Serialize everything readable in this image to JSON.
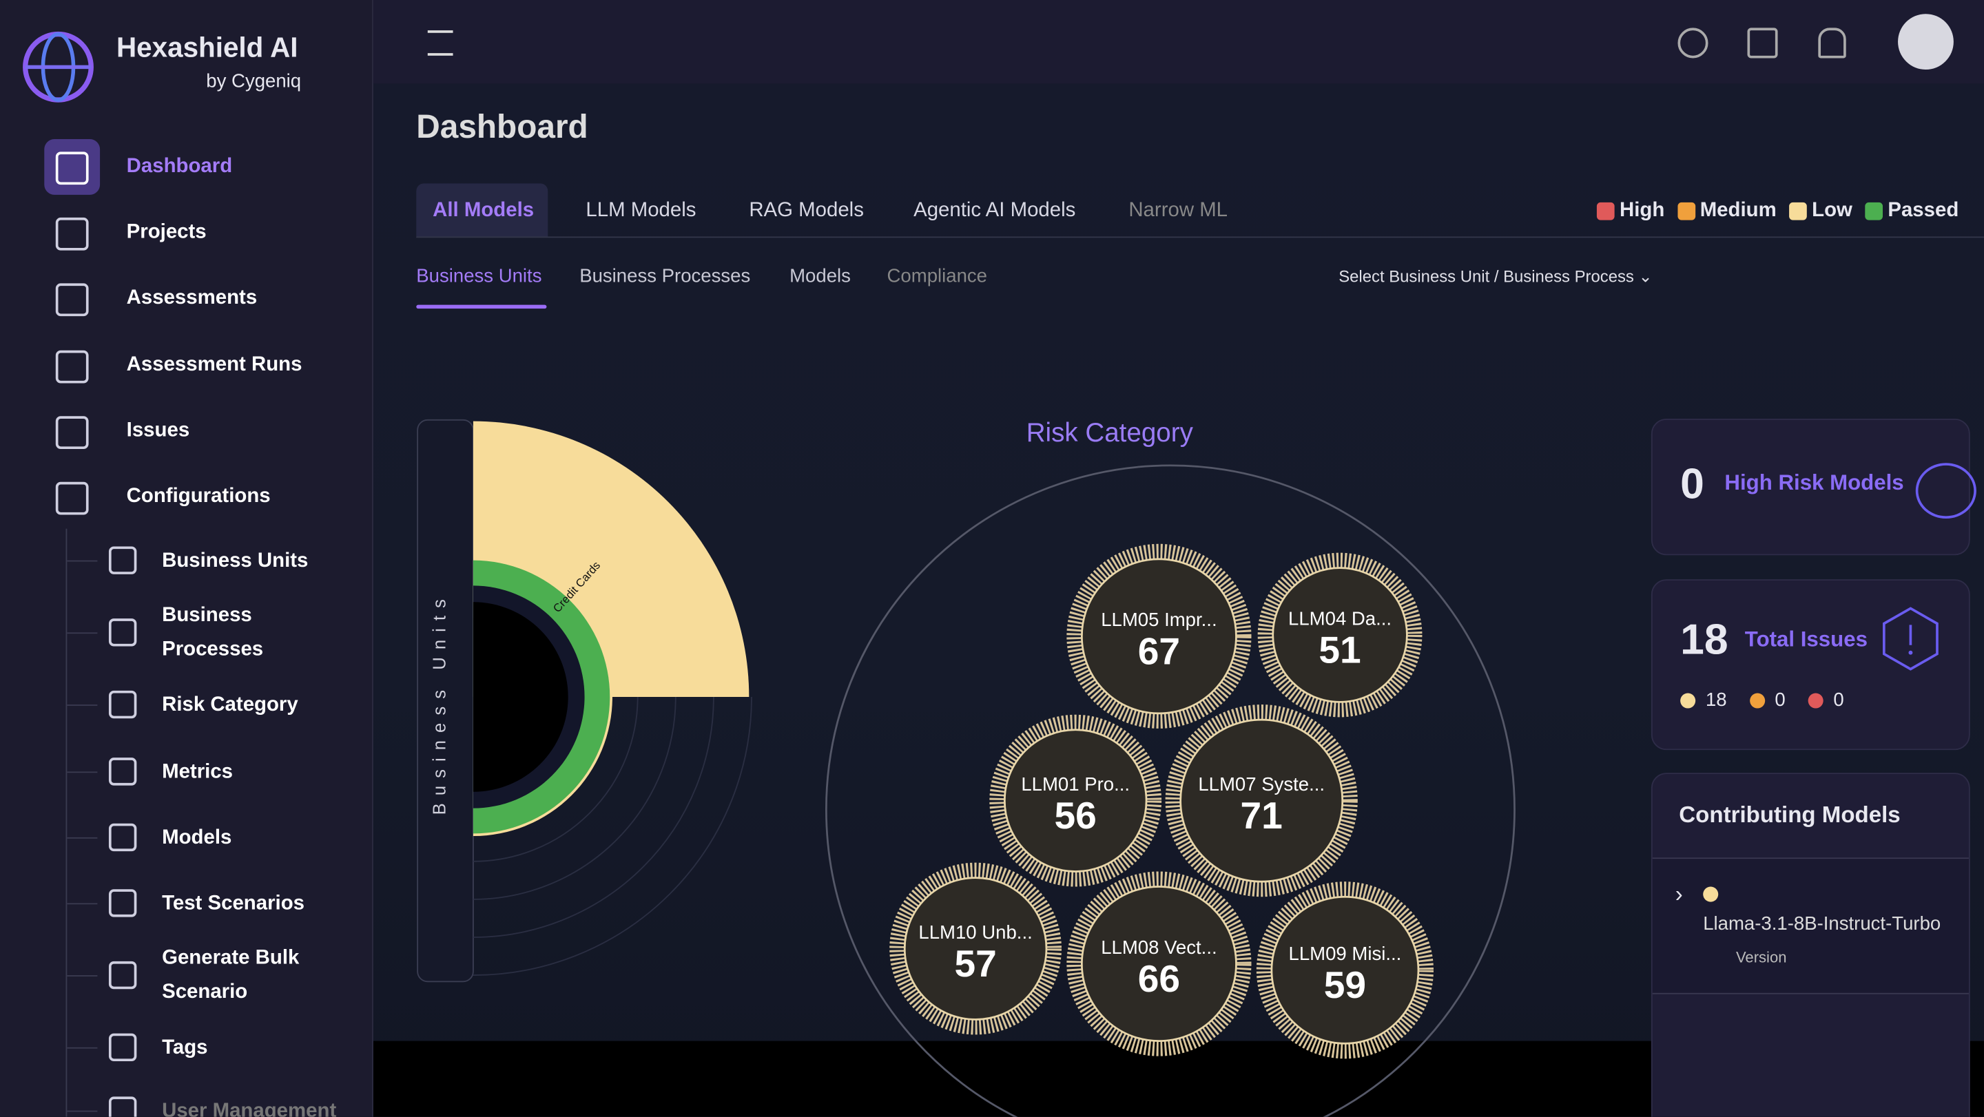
{
  "brand": {
    "name": "Hexashield AI",
    "by": "by Cygeniq"
  },
  "sidebar": {
    "items": [
      "Dashboard",
      "Projects",
      "Assessments",
      "Assessment Runs",
      "Issues",
      "Configurations"
    ],
    "sub_items": [
      "Business Units",
      "Business Processes",
      "Risk Category",
      "Metrics",
      "Models",
      "Test Scenarios",
      "Generate Bulk Scenario",
      "Tags",
      "User Management"
    ]
  },
  "page_title": "Dashboard",
  "model_tabs": [
    "All Models",
    "LLM Models",
    "RAG Models",
    "Agentic AI Models",
    "Narrow ML"
  ],
  "legend": [
    {
      "label": "High",
      "color": "#e05a5a"
    },
    {
      "label": "Medium",
      "color": "#f0a03c"
    },
    {
      "label": "Low",
      "color": "#f7dc9a"
    },
    {
      "label": "Passed",
      "color": "#4caf50"
    }
  ],
  "view_tabs": [
    "Business Units",
    "Business Processes",
    "Models",
    "Compliance"
  ],
  "selector": "Select Business Unit / Business Process",
  "sunburst": {
    "axis_label": "Business Units",
    "segment_label": "Credit Cards"
  },
  "risk_category": {
    "title": "Risk Category",
    "bubbles": [
      {
        "label": "LLM05 Impr...",
        "value": 67
      },
      {
        "label": "LLM04 Da...",
        "value": 51
      },
      {
        "label": "LLM01 Pro...",
        "value": 56
      },
      {
        "label": "LLM07 Syste...",
        "value": 71
      },
      {
        "label": "LLM10 Unb...",
        "value": 57
      },
      {
        "label": "LLM08 Vect...",
        "value": 66
      },
      {
        "label": "LLM09 Misi...",
        "value": 59
      }
    ]
  },
  "cards": {
    "high_risk": {
      "value": 0,
      "label": "High Risk Models"
    },
    "total_issues": {
      "value": 18,
      "label": "Total Issues",
      "breakdown": [
        18,
        0,
        0
      ]
    }
  },
  "contributing_models": {
    "title": "Contributing Models",
    "models": [
      {
        "name": "Llama-3.1-8B-Instruct-Turbo",
        "version_label": "Version"
      }
    ]
  }
}
